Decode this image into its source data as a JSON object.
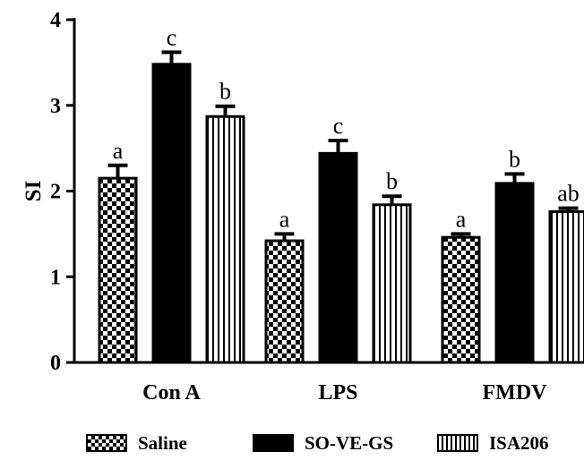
{
  "chart_data": {
    "type": "bar",
    "title": "",
    "xlabel": "",
    "ylabel": "SI",
    "ylim": [
      0,
      4
    ],
    "yticks": [
      "0",
      "1",
      "2",
      "3",
      "4"
    ],
    "categories": [
      "Con A",
      "LPS",
      "FMDV"
    ],
    "series": [
      {
        "name": "Saline",
        "pattern": "checker",
        "values": [
          2.15,
          1.42,
          1.46
        ],
        "errors": [
          0.15,
          0.08,
          0.04
        ],
        "labels": [
          "a",
          "a",
          "a"
        ]
      },
      {
        "name": "SO-VE-GS",
        "pattern": "solid",
        "values": [
          3.48,
          2.44,
          2.09
        ],
        "errors": [
          0.14,
          0.15,
          0.11
        ],
        "labels": [
          "c",
          "c",
          "b"
        ]
      },
      {
        "name": "ISA206",
        "pattern": "vertical",
        "values": [
          2.87,
          1.84,
          1.76
        ],
        "errors": [
          0.12,
          0.1,
          0.04
        ],
        "labels": [
          "b",
          "b",
          "ab"
        ]
      }
    ],
    "grid": false,
    "legend_position": "bottom",
    "colors": {
      "ink": "#000000",
      "background": "#ffffff"
    }
  }
}
